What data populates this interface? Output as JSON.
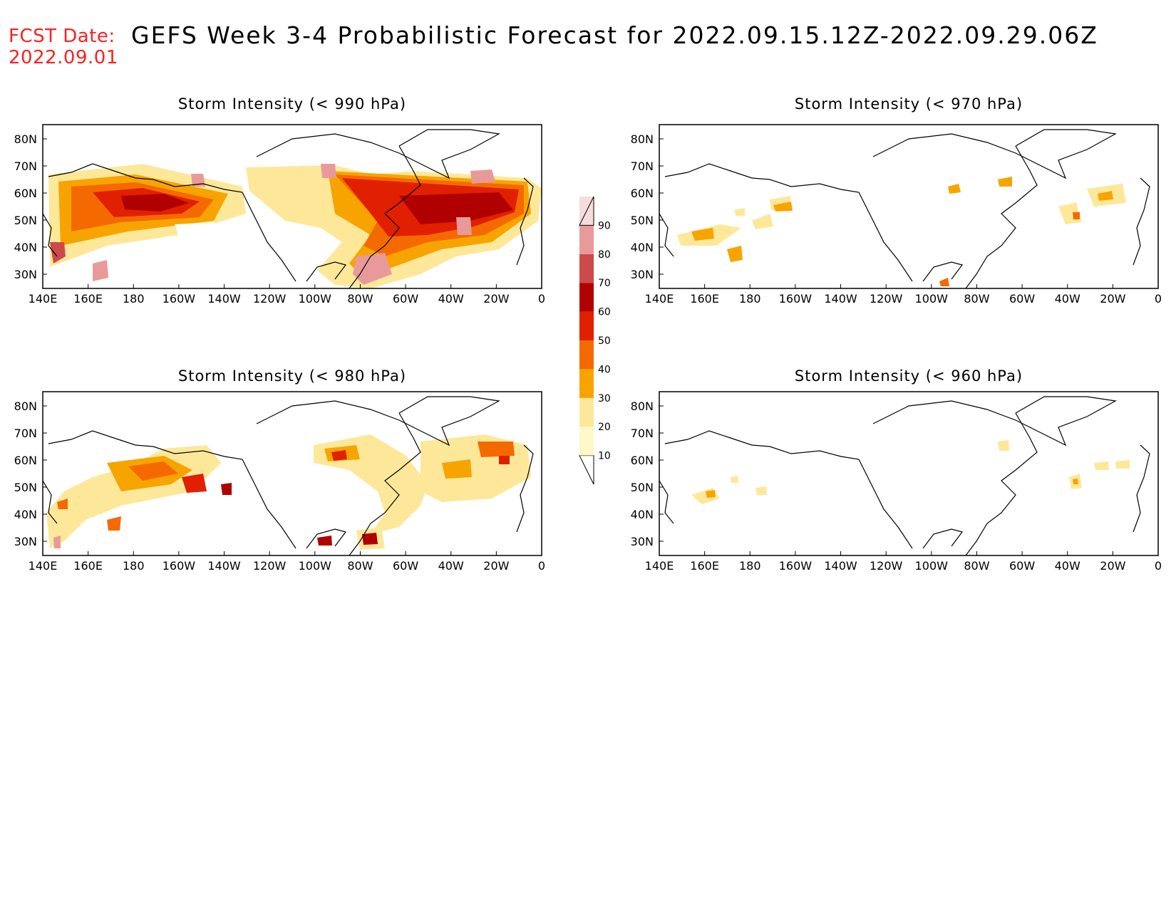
{
  "header": {
    "fcst_label": "FCST Date:",
    "fcst_date": "2022.09.01",
    "title": "GEFS Week 3-4 Probabilistic Forecast for 2022.09.15.12Z-2022.09.29.06Z"
  },
  "axes": {
    "lat_ticks": [
      "80N",
      "70N",
      "60N",
      "50N",
      "40N",
      "30N"
    ],
    "lon_ticks": [
      "140E",
      "160E",
      "180",
      "160W",
      "140W",
      "120W",
      "100W",
      "80W",
      "60W",
      "40W",
      "20W",
      "0"
    ]
  },
  "colorbar": {
    "levels": [
      10,
      20,
      30,
      40,
      50,
      60,
      70,
      80,
      90
    ],
    "colors": [
      "#fff8c8",
      "#fde89a",
      "#f7a400",
      "#f56a00",
      "#e02000",
      "#b00000",
      "#cc4a4a",
      "#e89a9a",
      "#f7dcdc"
    ]
  },
  "panels": [
    {
      "title": "Storm Intensity (< 990 hPa)"
    },
    {
      "title": "Storm Intensity (< 970 hPa)"
    },
    {
      "title": "Storm Intensity (< 980 hPa)"
    },
    {
      "title": "Storm Intensity (< 960 hPa)"
    }
  ]
}
